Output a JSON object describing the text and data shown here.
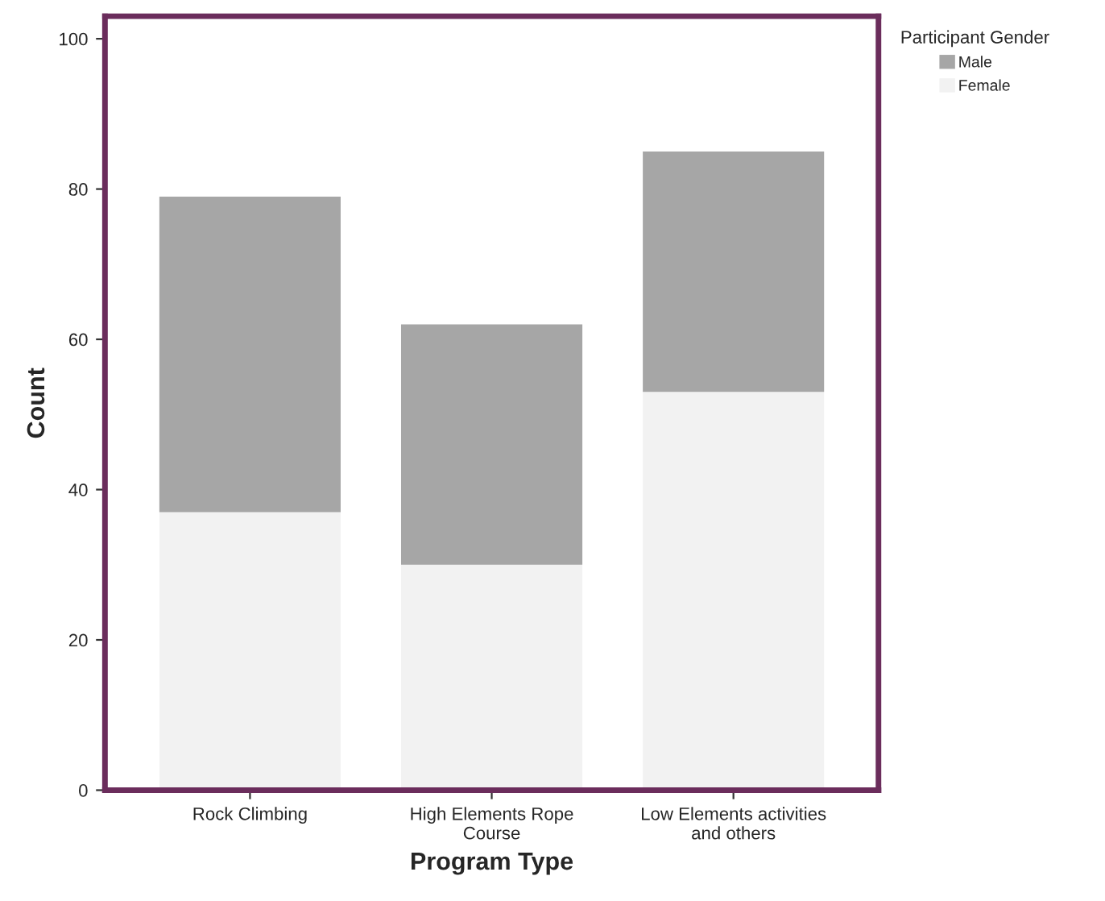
{
  "chart_data": {
    "type": "bar",
    "stacked": true,
    "xlabel": "Program Type",
    "ylabel": "Count",
    "legend_title": "Participant Gender",
    "legend": "top right",
    "categories": [
      "Rock Climbing",
      "High Elements Rope\nCourse",
      "Low Elements activities\nand others"
    ],
    "series": [
      {
        "name": "Female",
        "color": "#f2f2f2",
        "values": [
          37,
          30,
          53
        ]
      },
      {
        "name": "Male",
        "color": "#a6a6a6",
        "values": [
          42,
          32,
          32
        ]
      }
    ],
    "ylim": [
      0,
      103
    ],
    "yticks": [
      0,
      20,
      40,
      60,
      80,
      100
    ],
    "grid": false
  }
}
